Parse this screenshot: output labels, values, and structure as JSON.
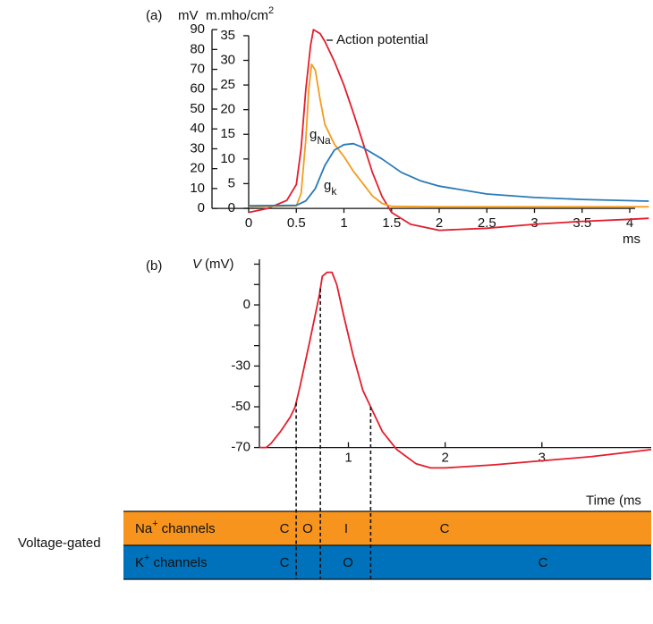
{
  "chart_data": [
    {
      "type": "line",
      "panel": "(a)",
      "y_label": "mV",
      "y2_label": {
        "text": "m.mho/cm",
        "sup": "2"
      },
      "x_label": "ms",
      "xlim": [
        0,
        4.2
      ],
      "xticks": [
        0,
        0.5,
        1,
        1.5,
        2,
        2.5,
        3,
        3.5,
        4
      ],
      "ylim": [
        -13,
        91.4
      ],
      "yticks": [
        0,
        10,
        20,
        30,
        40,
        50,
        60,
        70,
        80,
        90
      ],
      "y2lim": [
        -5.26,
        36.8
      ],
      "y2ticks": [
        0,
        5,
        10,
        15,
        20,
        25,
        30,
        35
      ],
      "series": [
        {
          "name": "Action potential",
          "color": "#e31e2d",
          "axis": "y",
          "x": [
            0,
            0.2,
            0.4,
            0.5,
            0.55,
            0.6,
            0.65,
            0.68,
            0.75,
            0.8,
            0.9,
            1.0,
            1.1,
            1.2,
            1.3,
            1.4,
            1.5,
            1.7,
            2.0,
            2.5,
            3.0,
            3.5,
            4.0,
            4.2
          ],
          "values": [
            -2,
            0,
            4,
            12,
            30,
            60,
            82,
            90,
            88,
            84,
            74,
            62,
            48,
            33,
            18,
            6,
            -2,
            -8,
            -11,
            -10,
            -8,
            -6.5,
            -5.5,
            -5
          ]
        },
        {
          "color": "#f39c1f",
          "axis": "y2",
          "x": [
            0,
            0.5,
            0.55,
            0.6,
            0.63,
            0.66,
            0.7,
            0.75,
            0.8,
            0.9,
            1.0,
            1.1,
            1.2,
            1.3,
            1.4,
            1.5,
            2.0,
            4.2
          ],
          "values": [
            0.3,
            0.5,
            3,
            14,
            24,
            29.2,
            28,
            22,
            17,
            13,
            10.5,
            7.5,
            5,
            2.5,
            1,
            0.4,
            0.3,
            0.3
          ]
        },
        {
          "color": "#2a7ab8",
          "axis": "y2",
          "x": [
            0,
            0.5,
            0.6,
            0.7,
            0.8,
            0.9,
            1.0,
            1.1,
            1.2,
            1.4,
            1.6,
            1.8,
            2.0,
            2.5,
            3.0,
            3.5,
            4.2
          ],
          "values": [
            0.5,
            0.6,
            1.5,
            4,
            8.7,
            11.8,
            12.9,
            13.1,
            12.3,
            10,
            7.3,
            5.6,
            4.5,
            2.9,
            2.2,
            1.8,
            1.45
          ]
        }
      ],
      "annotations": [
        {
          "text": "g",
          "sub": "Na"
        },
        {
          "text": "g",
          "sub": "k"
        }
      ]
    },
    {
      "type": "line",
      "panel": "(b)",
      "y_label": {
        "var": "V",
        "unit": "(mV)"
      },
      "x_label": "Time (ms",
      "xlim": [
        0.08,
        4.13
      ],
      "xticks": [
        1,
        2,
        3
      ],
      "ylim": [
        -82.9,
        22.4
      ],
      "yticks": [
        -70,
        -50,
        -30,
        0
      ],
      "yminorticks": [
        -60,
        -40,
        -20,
        -10,
        10,
        20
      ],
      "series": [
        {
          "color": "#e31e2d",
          "x": [
            0.08,
            0.15,
            0.2,
            0.3,
            0.4,
            0.45,
            0.5,
            0.6,
            0.7,
            0.73,
            0.78,
            0.83,
            0.88,
            0.95,
            1.05,
            1.15,
            1.25,
            1.35,
            1.5,
            1.7,
            1.85,
            2.0,
            2.5,
            3.0,
            3.5,
            4.13
          ],
          "values": [
            -70,
            -70,
            -68,
            -62,
            -55,
            -50,
            -40,
            -18,
            5,
            14,
            16,
            16,
            10,
            -5,
            -25,
            -42,
            -52,
            -62,
            -71,
            -78,
            -80,
            -80,
            -78.5,
            -76.5,
            -74.5,
            -71
          ]
        }
      ],
      "phase_boundaries": [
        0.46,
        0.71,
        1.23
      ],
      "channels": {
        "label": "Voltage-gated",
        "rows": [
          {
            "ion": "Na",
            "charge": "+",
            "suffix": "channels",
            "color": "#f7941d",
            "states": [
              "C",
              "O",
              "I",
              "C"
            ]
          },
          {
            "ion": "K",
            "charge": "+",
            "suffix": "channels",
            "color": "#0072bc",
            "states": [
              "C",
              "O",
              "C"
            ]
          }
        ]
      }
    }
  ]
}
